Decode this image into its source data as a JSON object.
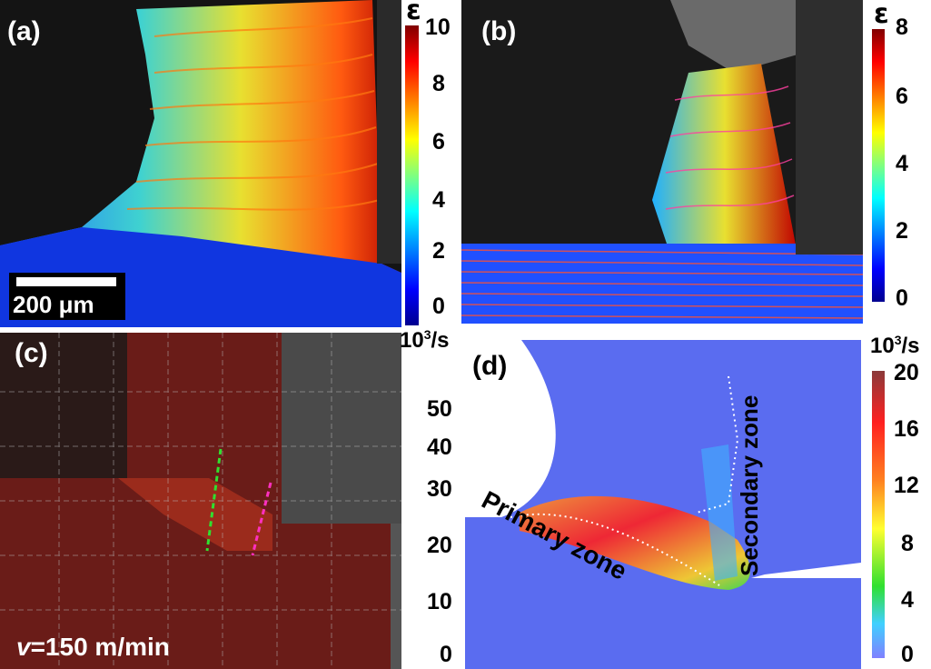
{
  "figure": {
    "panels": [
      {
        "id": "a",
        "label": "(a)",
        "scale_bar": "200 μm",
        "colorbar": {
          "symbol": "ε",
          "ticks": [
            "10",
            "8",
            "6",
            "4",
            "2",
            "0"
          ],
          "min": 0,
          "max": 10
        }
      },
      {
        "id": "b",
        "label": "(b)",
        "colorbar": {
          "symbol": "ε",
          "ticks": [
            "8",
            "6",
            "4",
            "2",
            "0"
          ],
          "min": 0,
          "max": 8
        }
      },
      {
        "id": "c",
        "label": "(c)",
        "annotation_v": "v",
        "annotation_rest": "=150 m/min",
        "colorbar": {
          "unit": "10³/s",
          "ticks": [
            "50",
            "40",
            "30",
            "20",
            "10",
            "0"
          ],
          "min": 0,
          "max": 50
        }
      },
      {
        "id": "d",
        "label": "(d)",
        "zone_primary": "Primary zone",
        "zone_secondary": "Secondary zone",
        "colorbar": {
          "unit": "10³/s",
          "ticks": [
            "20",
            "16",
            "12",
            "8",
            "4",
            "0"
          ],
          "min": 0,
          "max": 20
        }
      }
    ]
  },
  "colors": {
    "jet_low": "#00008f",
    "jet_high": "#800000",
    "panel_d_bg": "#5a6cf0",
    "panel_c_overlay": "#6b1a16"
  }
}
